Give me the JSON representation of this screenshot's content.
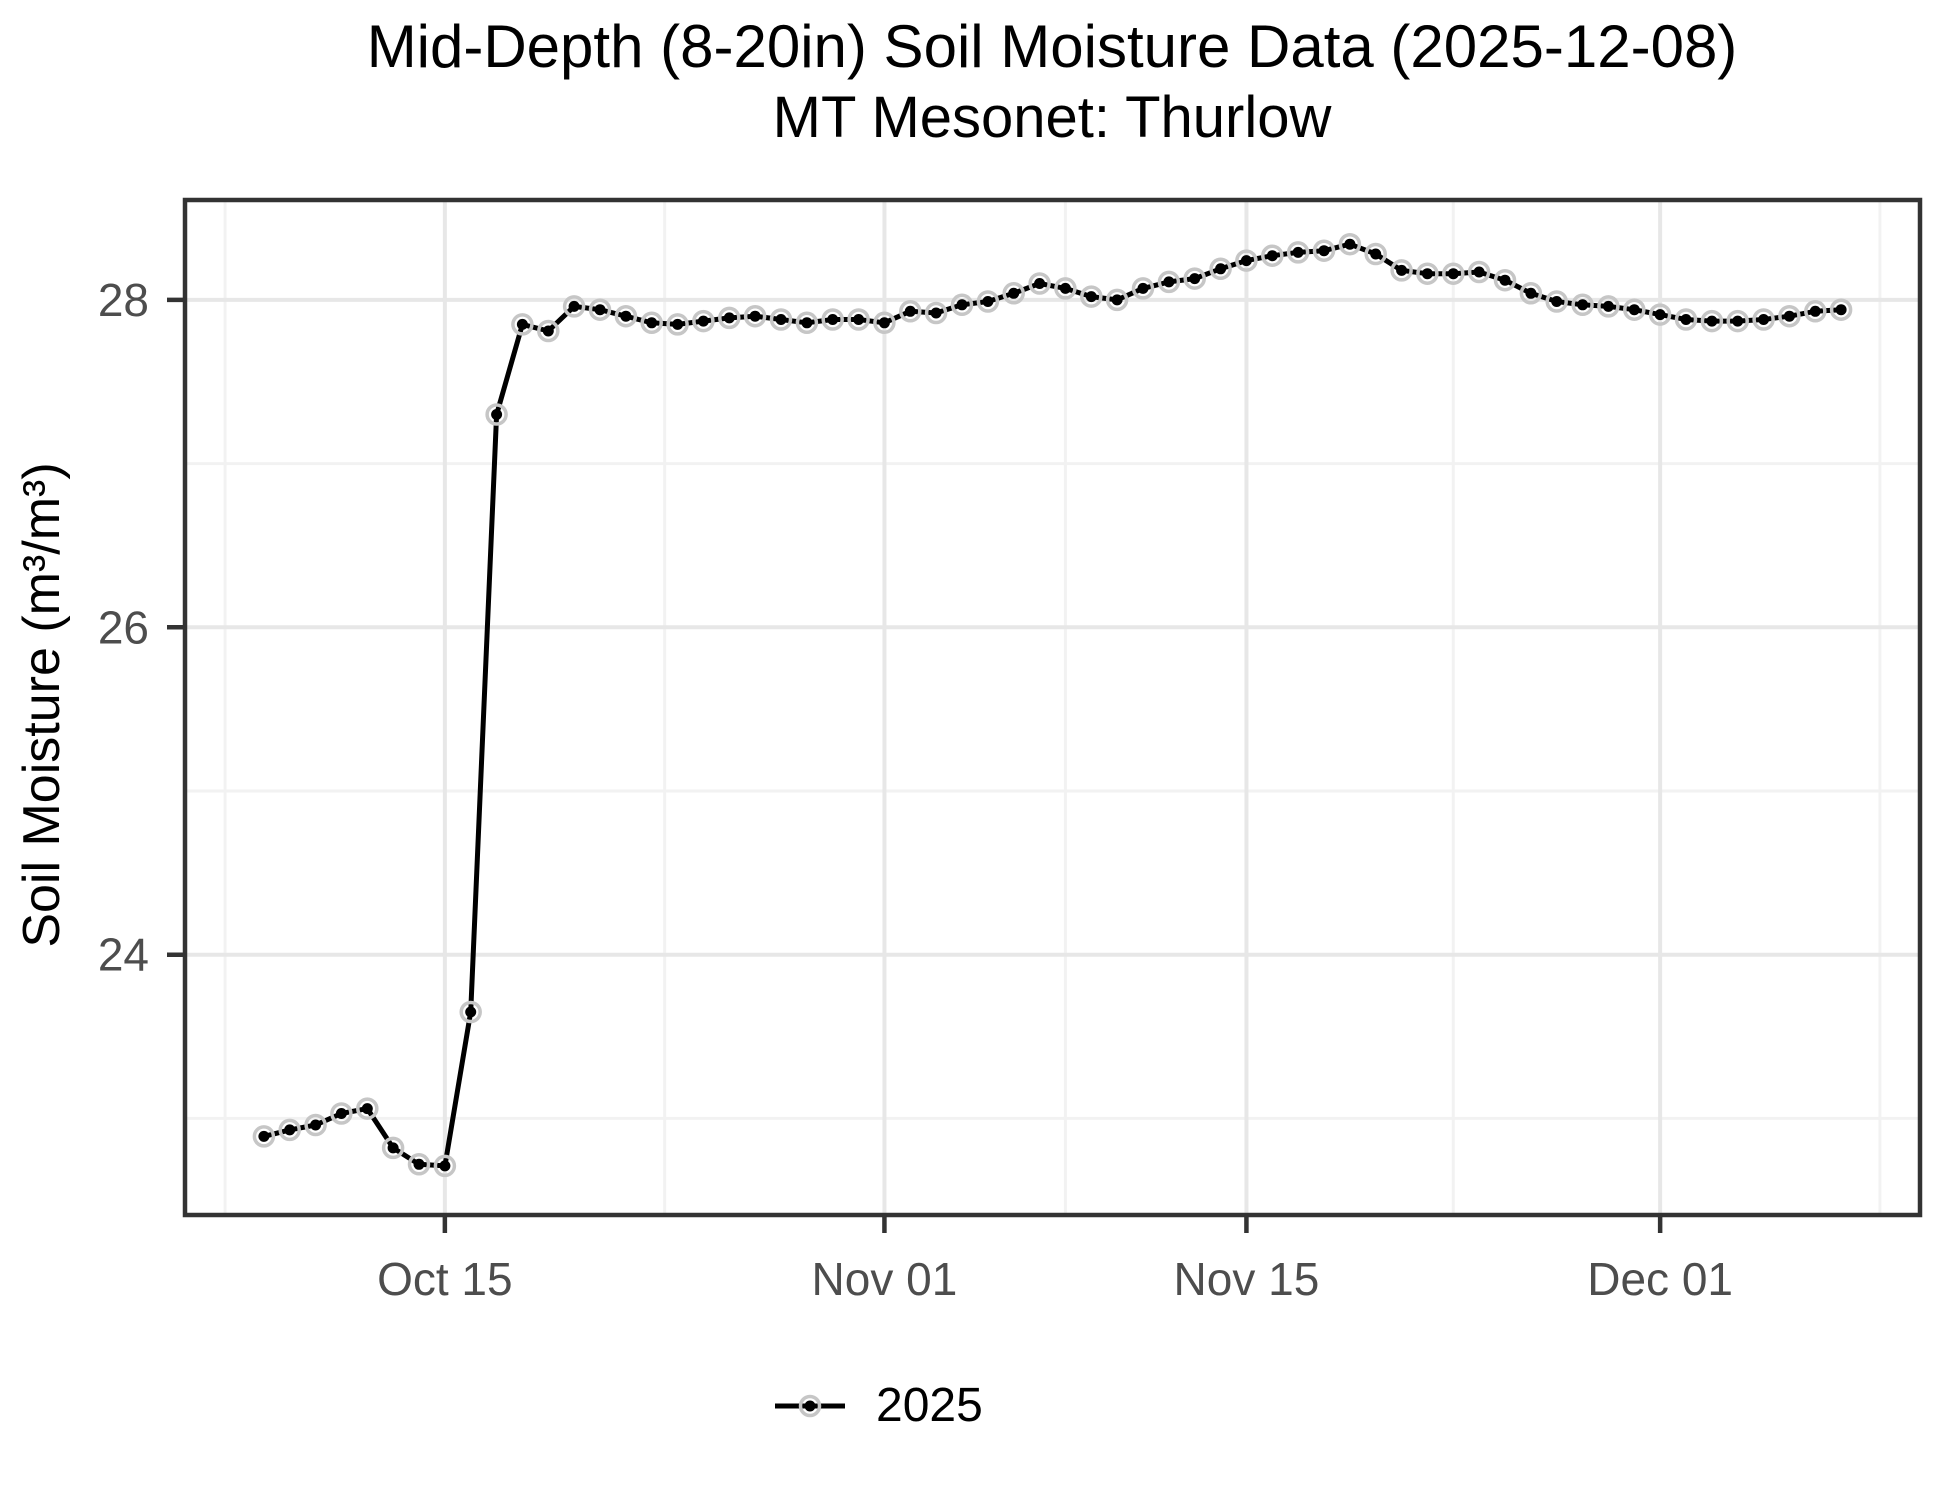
{
  "chart_data": {
    "type": "line",
    "title": "Mid-Depth (8-20in) Soil Moisture Data (2025-12-08)",
    "subtitle": "MT Mesonet: Thurlow",
    "xlabel": "",
    "ylabel": "Soil Moisture (m³/m³)",
    "grid": true,
    "legend_position": "bottom",
    "ylim": [
      22.41,
      28.61
    ],
    "y_ticks": [
      {
        "label": "24",
        "value": 24
      },
      {
        "label": "26",
        "value": 26
      },
      {
        "label": "28",
        "value": 28
      }
    ],
    "y_minor": [
      23,
      25,
      27
    ],
    "x_ticks": [
      {
        "label": "Oct 15",
        "index": 7
      },
      {
        "label": "Nov 01",
        "index": 24
      },
      {
        "label": "Nov 15",
        "index": 38
      },
      {
        "label": "Dec 01",
        "index": 54
      }
    ],
    "x_minor_indices": [
      -1.5,
      15.5,
      31,
      46,
      62.5
    ],
    "x": [
      "2025-10-08",
      "2025-10-09",
      "2025-10-10",
      "2025-10-11",
      "2025-10-12",
      "2025-10-13",
      "2025-10-14",
      "2025-10-15",
      "2025-10-16",
      "2025-10-17",
      "2025-10-18",
      "2025-10-19",
      "2025-10-20",
      "2025-10-21",
      "2025-10-22",
      "2025-10-23",
      "2025-10-24",
      "2025-10-25",
      "2025-10-26",
      "2025-10-27",
      "2025-10-28",
      "2025-10-29",
      "2025-10-30",
      "2025-10-31",
      "2025-11-01",
      "2025-11-02",
      "2025-11-03",
      "2025-11-04",
      "2025-11-05",
      "2025-11-06",
      "2025-11-07",
      "2025-11-08",
      "2025-11-09",
      "2025-11-10",
      "2025-11-11",
      "2025-11-12",
      "2025-11-13",
      "2025-11-14",
      "2025-11-15",
      "2025-11-16",
      "2025-11-17",
      "2025-11-18",
      "2025-11-19",
      "2025-11-20",
      "2025-11-21",
      "2025-11-22",
      "2025-11-23",
      "2025-11-24",
      "2025-11-25",
      "2025-11-26",
      "2025-11-27",
      "2025-11-28",
      "2025-11-29",
      "2025-11-30",
      "2025-12-01",
      "2025-12-02",
      "2025-12-03",
      "2025-12-04",
      "2025-12-05",
      "2025-12-06",
      "2025-12-07",
      "2025-12-08"
    ],
    "series": [
      {
        "name": "2025",
        "values": [
          22.89,
          22.93,
          22.96,
          23.03,
          23.06,
          22.82,
          22.72,
          22.71,
          23.65,
          27.3,
          27.85,
          27.81,
          27.96,
          27.94,
          27.9,
          27.86,
          27.85,
          27.87,
          27.89,
          27.9,
          27.88,
          27.86,
          27.88,
          27.88,
          27.86,
          27.93,
          27.92,
          27.97,
          27.99,
          28.04,
          28.1,
          28.07,
          28.02,
          28.0,
          28.07,
          28.11,
          28.13,
          28.19,
          28.24,
          28.27,
          28.29,
          28.3,
          28.34,
          28.28,
          28.18,
          28.16,
          28.16,
          28.17,
          28.12,
          28.04,
          27.99,
          27.97,
          27.96,
          27.94,
          27.91,
          27.88,
          27.87,
          27.87,
          27.88,
          27.9,
          27.93,
          27.94
        ]
      }
    ],
    "colors": {
      "line": "#000000",
      "point": "#000000",
      "point_halo": "#c6c6c6",
      "grid_major": "#e7e7e7",
      "grid_minor": "#f2f2f2",
      "panel_border": "#333333",
      "tick_mark": "#333333",
      "tick_label": "#4d4d4d",
      "background": "#ffffff"
    }
  }
}
